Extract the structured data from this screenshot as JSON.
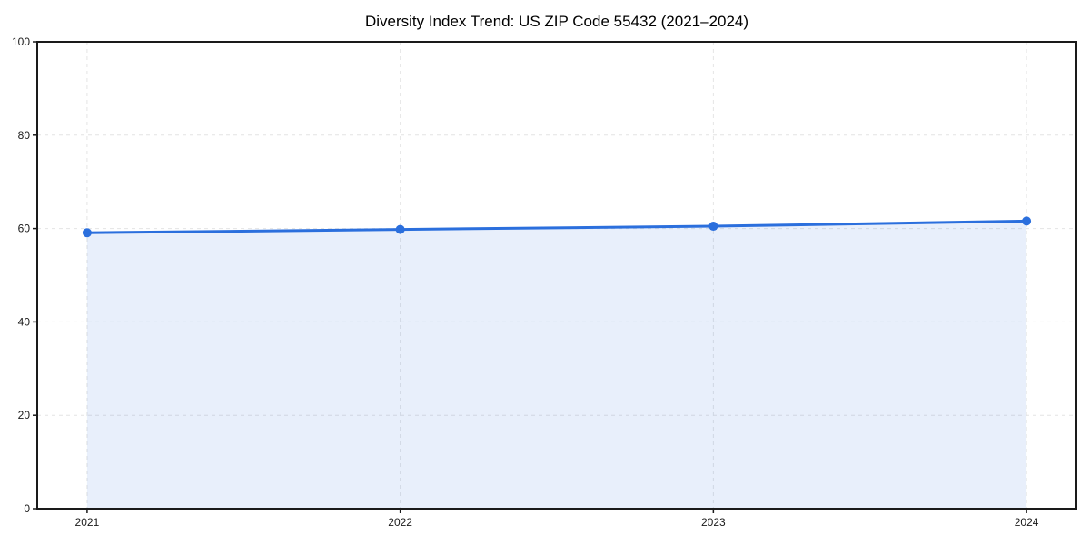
{
  "figure": {
    "background": "#ffffff"
  },
  "chart_data": {
    "type": "area",
    "title": "Diversity Index Trend: US ZIP Code 55432 (2021–2024)",
    "categories": [
      "2021",
      "2022",
      "2023",
      "2024"
    ],
    "x": [
      2021,
      2022,
      2023,
      2024
    ],
    "series": [
      {
        "name": "Diversity Index",
        "values": [
          59.1,
          59.8,
          60.5,
          61.6
        ]
      }
    ],
    "xlabel": "",
    "ylabel": "",
    "ylim": [
      0,
      100
    ],
    "yticks": [
      0,
      20,
      40,
      60,
      80,
      100
    ],
    "grid": true,
    "grid_style": "dashed",
    "legend_position": "none",
    "marker": "circle",
    "line_color": "#2b6fdd",
    "fill_color": "#2b6fdd",
    "fill_opacity": 0.11,
    "axis_color": "#1a1a1a",
    "grid_color": "#e4e4e4",
    "tick_label_color": "#1a1a1a",
    "background_color": "#ffffff"
  }
}
